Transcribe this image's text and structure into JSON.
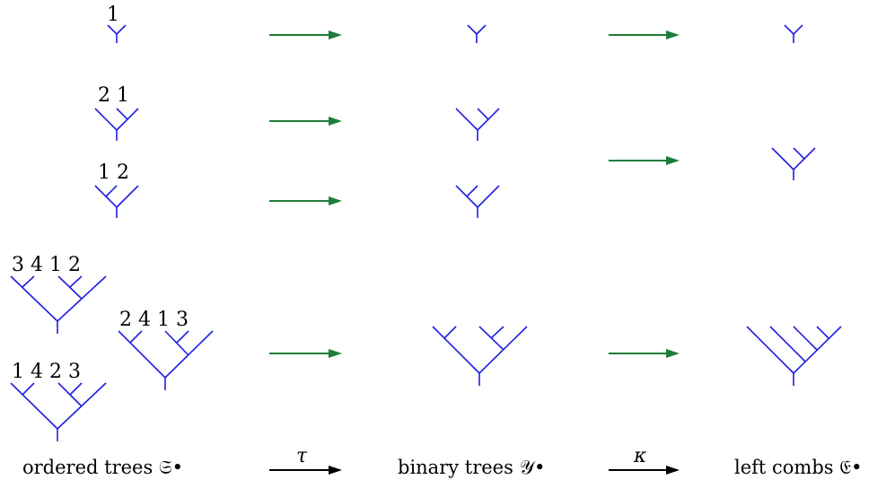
{
  "colors": {
    "tree": "#1f1fe0",
    "map_arrow": "#1e7d3a",
    "key_arrow": "#000000"
  },
  "ordered_trees": {
    "t1": "1",
    "t21": "2 1",
    "t12": "1 2",
    "t3412": "3 4 1 2",
    "t2413": "2 4 1 3",
    "t1423": "1 4 2 3"
  },
  "captions": {
    "ordered": "ordered trees 𝔖•",
    "binary": "binary trees 𝒴•",
    "combs": "left combs 𝔈•"
  },
  "maps": {
    "tau": "τ",
    "kappa": "κ"
  }
}
